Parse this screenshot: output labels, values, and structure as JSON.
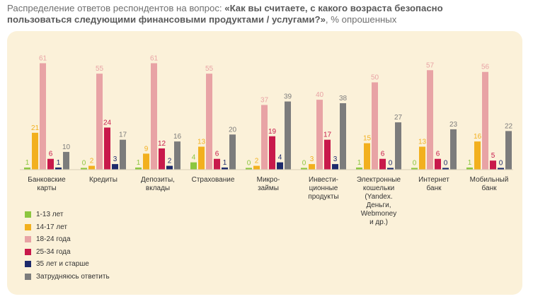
{
  "chart_data": {
    "type": "bar",
    "title_prefix": "Распределение ответов респондентов на вопрос: ",
    "title_bold": "«Как вы считаете, с какого возраста безопасно пользоваться следующими финансовыми продуктами / услугами?»",
    "title_suffix": ", % опрошенных",
    "categories": [
      [
        "Банковские",
        "карты"
      ],
      [
        "Кредиты"
      ],
      [
        "Депозиты,",
        "вклады"
      ],
      [
        "Страхование"
      ],
      [
        "Микро-",
        "займы"
      ],
      [
        "Инвести-",
        "ционные",
        "продукты"
      ],
      [
        "Электронные",
        "кошельки",
        "(Yandex.",
        "Деньги,",
        "Webmoney",
        "и др.)"
      ],
      [
        "Интернет",
        "банк"
      ],
      [
        "Мобильный",
        "банк"
      ]
    ],
    "series": [
      {
        "name": "1-13 лет",
        "color": "#8cc63f",
        "values": [
          1,
          0,
          1,
          4,
          0,
          0,
          1,
          0,
          1
        ]
      },
      {
        "name": "14-17 лет",
        "color": "#f2b01e",
        "values": [
          21,
          2,
          9,
          13,
          2,
          3,
          15,
          13,
          16
        ]
      },
      {
        "name": "18-24 года",
        "color": "#e8a3a5",
        "values": [
          61,
          55,
          61,
          55,
          37,
          40,
          50,
          57,
          56
        ]
      },
      {
        "name": "25-34 года",
        "color": "#c8194b",
        "values": [
          6,
          24,
          12,
          6,
          19,
          17,
          6,
          6,
          5
        ]
      },
      {
        "name": "35 лет и старше",
        "color": "#1d2a6b",
        "values": [
          1,
          3,
          2,
          1,
          4,
          3,
          0,
          0,
          0
        ]
      },
      {
        "name": "Затрудняюсь ответить",
        "color": "#7c7c7c",
        "values": [
          10,
          17,
          16,
          20,
          39,
          38,
          27,
          23,
          22
        ]
      }
    ]
  }
}
